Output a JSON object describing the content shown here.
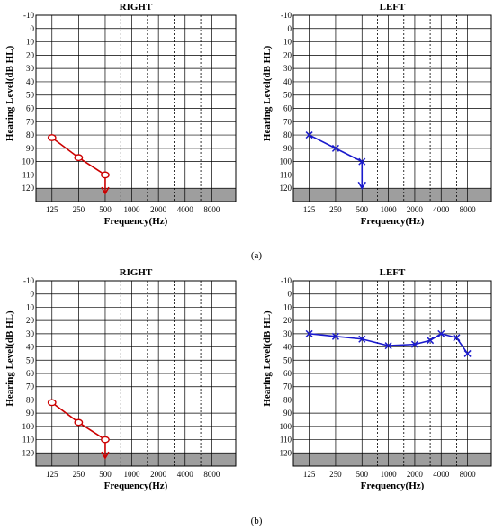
{
  "figure_labels": [
    "(a)",
    "(b)"
  ],
  "chart_data": [
    {
      "type": "line",
      "panel": "a",
      "title": "RIGHT",
      "xlabel": "Frequency(Hz)",
      "ylabel": "Hearing Level(dB HL)",
      "x_ticks": [
        "125",
        "250",
        "500",
        "1000",
        "2000",
        "4000",
        "8000"
      ],
      "y_ticks": [
        "-10",
        "0",
        "10",
        "20",
        "30",
        "40",
        "50",
        "60",
        "70",
        "80",
        "90",
        "100",
        "110",
        "120"
      ],
      "ylim": [
        -10,
        130
      ],
      "y_reversed": true,
      "shaded_band": [
        120,
        130
      ],
      "dotted_gridlines_at_hz": [
        750,
        1500,
        3000,
        6000
      ],
      "series": [
        {
          "color": "#cc0000",
          "marker": "circle",
          "x": [
            125,
            250,
            500
          ],
          "values": [
            82,
            97,
            110
          ],
          "down_arrow_at": {
            "x": 500,
            "from": 110,
            "to": 124
          }
        }
      ]
    },
    {
      "type": "line",
      "panel": "a",
      "title": "LEFT",
      "xlabel": "Frequency(Hz)",
      "ylabel": "Hearing Level(dB HL)",
      "x_ticks": [
        "125",
        "250",
        "500",
        "1000",
        "2000",
        "4000",
        "8000"
      ],
      "y_ticks": [
        "-10",
        "0",
        "10",
        "20",
        "30",
        "40",
        "50",
        "60",
        "70",
        "80",
        "90",
        "100",
        "110",
        "120"
      ],
      "ylim": [
        -10,
        130
      ],
      "y_reversed": true,
      "shaded_band": [
        120,
        130
      ],
      "dotted_gridlines_at_hz": [
        750,
        1500,
        3000,
        6000
      ],
      "series": [
        {
          "color": "#1a1acc",
          "marker": "x",
          "x": [
            125,
            250,
            500
          ],
          "values": [
            80,
            90,
            100
          ],
          "down_arrow_at": {
            "x": 500,
            "from": 100,
            "to": 120
          }
        }
      ]
    },
    {
      "type": "line",
      "panel": "b",
      "title": "RIGHT",
      "xlabel": "Frequency(Hz)",
      "ylabel": "Hearing Level(dB HL)",
      "x_ticks": [
        "125",
        "250",
        "500",
        "1000",
        "2000",
        "4000",
        "8000"
      ],
      "y_ticks": [
        "-10",
        "0",
        "10",
        "20",
        "30",
        "40",
        "50",
        "60",
        "70",
        "80",
        "90",
        "100",
        "110",
        "120"
      ],
      "ylim": [
        -10,
        130
      ],
      "y_reversed": true,
      "shaded_band": [
        120,
        130
      ],
      "dotted_gridlines_at_hz": [
        750,
        1500,
        3000,
        6000
      ],
      "series": [
        {
          "color": "#cc0000",
          "marker": "circle",
          "x": [
            125,
            250,
            500
          ],
          "values": [
            82,
            97,
            110
          ],
          "down_arrow_at": {
            "x": 500,
            "from": 110,
            "to": 124
          }
        }
      ]
    },
    {
      "type": "line",
      "panel": "b",
      "title": "LEFT",
      "xlabel": "Frequency(Hz)",
      "ylabel": "Hearing Level(dB HL)",
      "x_ticks": [
        "125",
        "250",
        "500",
        "1000",
        "2000",
        "4000",
        "8000"
      ],
      "y_ticks": [
        "-10",
        "0",
        "10",
        "20",
        "30",
        "40",
        "50",
        "60",
        "70",
        "80",
        "90",
        "100",
        "110",
        "120"
      ],
      "ylim": [
        -10,
        130
      ],
      "y_reversed": true,
      "shaded_band": [
        120,
        130
      ],
      "dotted_gridlines_at_hz": [
        750,
        1500,
        3000,
        6000
      ],
      "series": [
        {
          "color": "#1a1acc",
          "marker": "x",
          "x": [
            125,
            250,
            500,
            1000,
            2000,
            3000,
            4000,
            6000,
            8000
          ],
          "values": [
            30,
            32,
            34,
            39,
            38,
            35,
            30,
            33,
            45
          ]
        }
      ]
    }
  ]
}
